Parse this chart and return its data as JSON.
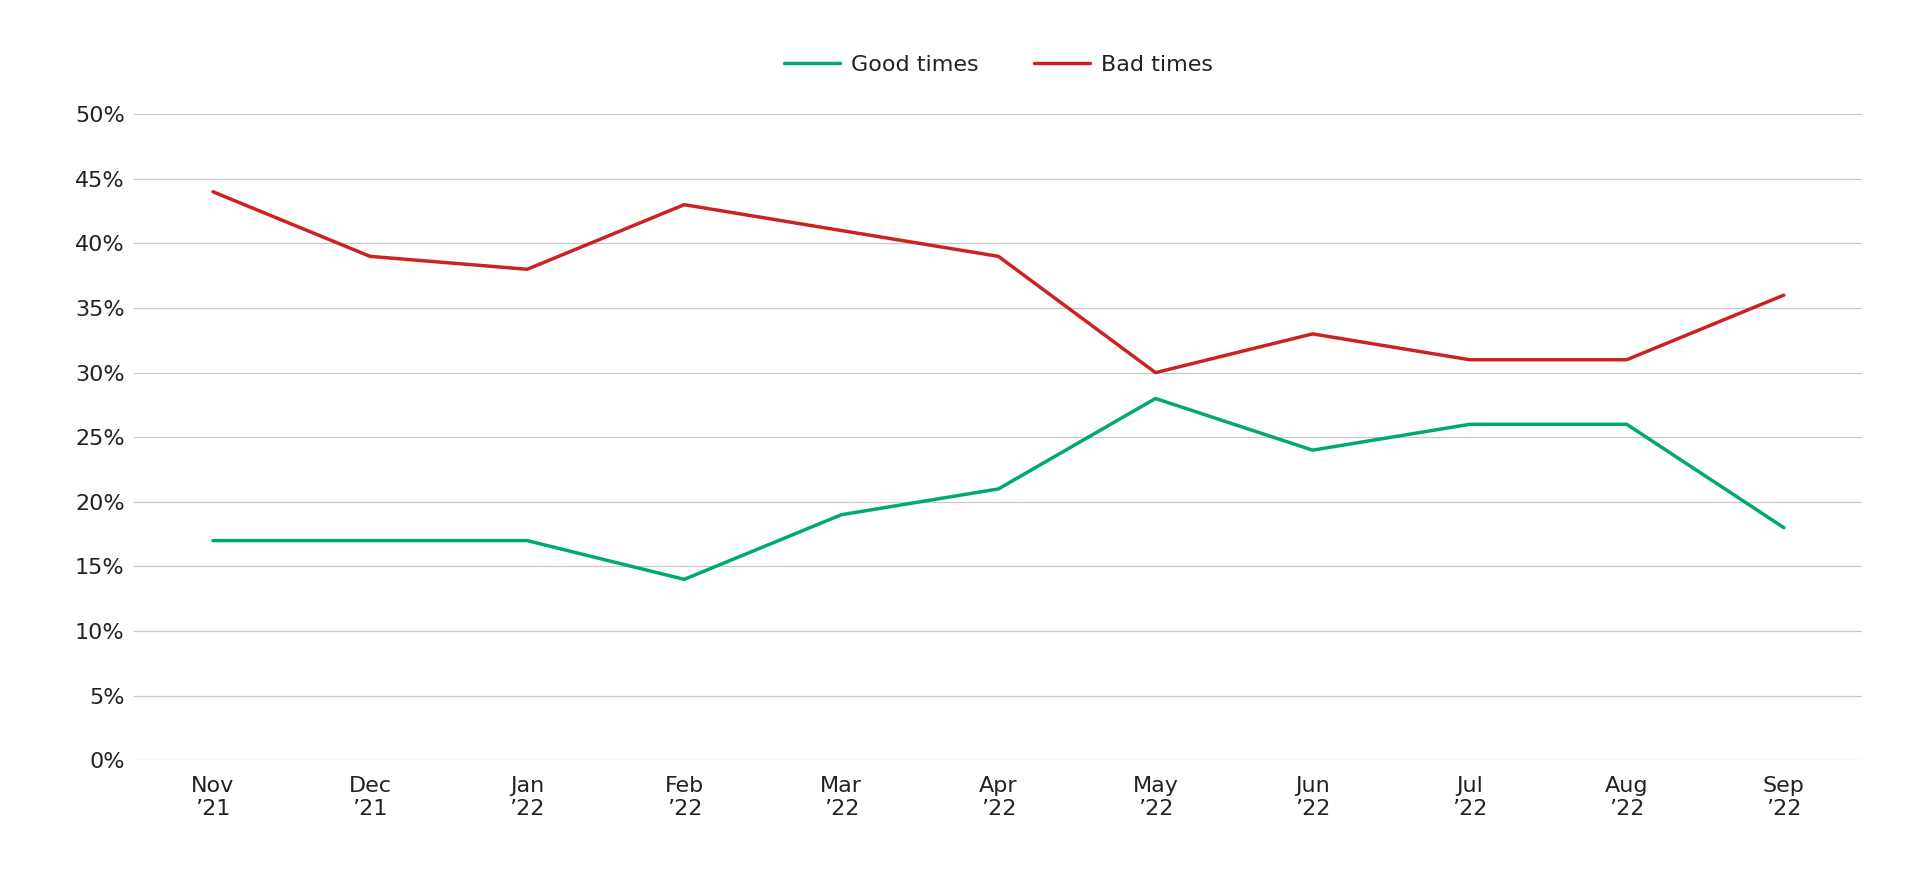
{
  "x_labels": [
    "Nov\n’21",
    "Dec\n’21",
    "Jan\n’22",
    "Feb\n’22",
    "Mar\n’22",
    "Apr\n’22",
    "May\n’22",
    "Jun\n’22",
    "Jul\n’22",
    "Aug\n’22",
    "Sep\n’22"
  ],
  "good_times": [
    17,
    17,
    17,
    14,
    19,
    21,
    28,
    24,
    26,
    26,
    18
  ],
  "bad_times": [
    44,
    39,
    38,
    43,
    41,
    39,
    30,
    33,
    31,
    31,
    36
  ],
  "good_color": "#00a878",
  "bad_color": "#cc2222",
  "background_color": "#ffffff",
  "grid_color": "#c8c8c8",
  "ylim": [
    0,
    52
  ],
  "yticks": [
    0,
    5,
    10,
    15,
    20,
    25,
    30,
    35,
    40,
    45,
    50
  ],
  "legend_good": "Good times",
  "legend_bad": "Bad times",
  "line_width": 2.5,
  "tick_label_color": "#222222",
  "tick_fontsize": 16,
  "legend_fontsize": 16
}
